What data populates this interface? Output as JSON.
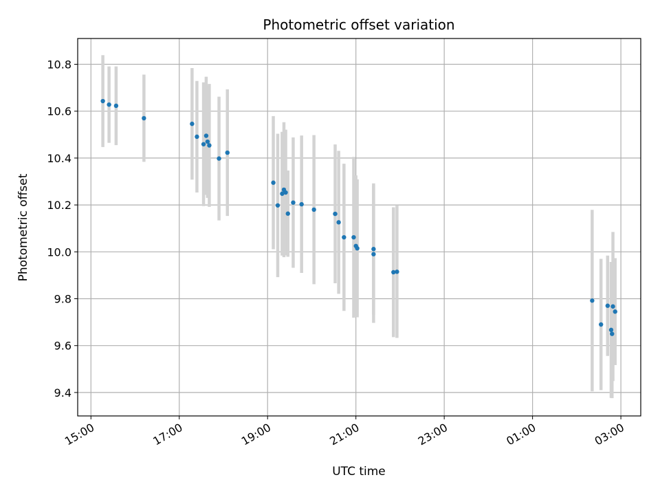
{
  "chart_data": {
    "type": "scatter",
    "title": "Photometric offset variation",
    "xlabel": "UTC time",
    "ylabel": "Photometric offset",
    "x_unit": "hours since 15:00 UTC",
    "xlim": [
      -0.3,
      12.45
    ],
    "ylim": [
      9.3,
      10.91
    ],
    "x_ticks": [
      {
        "x": 0,
        "label": "15:00"
      },
      {
        "x": 2,
        "label": "17:00"
      },
      {
        "x": 4,
        "label": "19:00"
      },
      {
        "x": 6,
        "label": "21:00"
      },
      {
        "x": 8,
        "label": "23:00"
      },
      {
        "x": 10,
        "label": "01:00"
      },
      {
        "x": 12,
        "label": "03:00"
      }
    ],
    "y_ticks": [
      9.4,
      9.6,
      9.8,
      10.0,
      10.2,
      10.4,
      10.6,
      10.8
    ],
    "grid": true,
    "marker_color": "#1f77b4",
    "errorbar_color": "#d3d3d3",
    "points": [
      {
        "x": 0.27,
        "y": 10.643,
        "err": 0.196
      },
      {
        "x": 0.41,
        "y": 10.628,
        "err": 0.163
      },
      {
        "x": 0.57,
        "y": 10.623,
        "err": 0.168
      },
      {
        "x": 1.2,
        "y": 10.57,
        "err": 0.186
      },
      {
        "x": 2.29,
        "y": 10.546,
        "err": 0.238
      },
      {
        "x": 2.4,
        "y": 10.491,
        "err": 0.238
      },
      {
        "x": 2.55,
        "y": 10.459,
        "err": 0.264
      },
      {
        "x": 2.61,
        "y": 10.495,
        "err": 0.252
      },
      {
        "x": 2.64,
        "y": 10.47,
        "err": 0.24
      },
      {
        "x": 2.68,
        "y": 10.454,
        "err": 0.262
      },
      {
        "x": 2.9,
        "y": 10.398,
        "err": 0.264
      },
      {
        "x": 3.09,
        "y": 10.423,
        "err": 0.27
      },
      {
        "x": 4.13,
        "y": 10.295,
        "err": 0.284
      },
      {
        "x": 4.23,
        "y": 10.198,
        "err": 0.306
      },
      {
        "x": 4.33,
        "y": 10.248,
        "err": 0.264
      },
      {
        "x": 4.37,
        "y": 10.265,
        "err": 0.288
      },
      {
        "x": 4.41,
        "y": 10.253,
        "err": 0.268
      },
      {
        "x": 4.46,
        "y": 10.163,
        "err": 0.184
      },
      {
        "x": 4.58,
        "y": 10.21,
        "err": 0.278
      },
      {
        "x": 4.77,
        "y": 10.203,
        "err": 0.293
      },
      {
        "x": 5.05,
        "y": 10.18,
        "err": 0.318
      },
      {
        "x": 5.53,
        "y": 10.162,
        "err": 0.296
      },
      {
        "x": 5.61,
        "y": 10.126,
        "err": 0.305
      },
      {
        "x": 5.73,
        "y": 10.062,
        "err": 0.314
      },
      {
        "x": 5.95,
        "y": 10.062,
        "err": 0.343
      },
      {
        "x": 6.0,
        "y": 10.025,
        "err": 0.301
      },
      {
        "x": 6.03,
        "y": 10.015,
        "err": 0.294
      },
      {
        "x": 6.4,
        "y": 10.012,
        "err": 0.28
      },
      {
        "x": 6.4,
        "y": 9.99,
        "err": 0.293
      },
      {
        "x": 6.85,
        "y": 9.913,
        "err": 0.277
      },
      {
        "x": 6.93,
        "y": 9.915,
        "err": 0.282
      },
      {
        "x": 11.35,
        "y": 9.792,
        "err": 0.387
      },
      {
        "x": 11.55,
        "y": 9.69,
        "err": 0.28
      },
      {
        "x": 11.7,
        "y": 9.77,
        "err": 0.214
      },
      {
        "x": 11.78,
        "y": 9.667,
        "err": 0.29
      },
      {
        "x": 11.8,
        "y": 9.65,
        "err": 0.274
      },
      {
        "x": 11.82,
        "y": 9.767,
        "err": 0.318
      },
      {
        "x": 11.87,
        "y": 9.745,
        "err": 0.228
      }
    ]
  }
}
